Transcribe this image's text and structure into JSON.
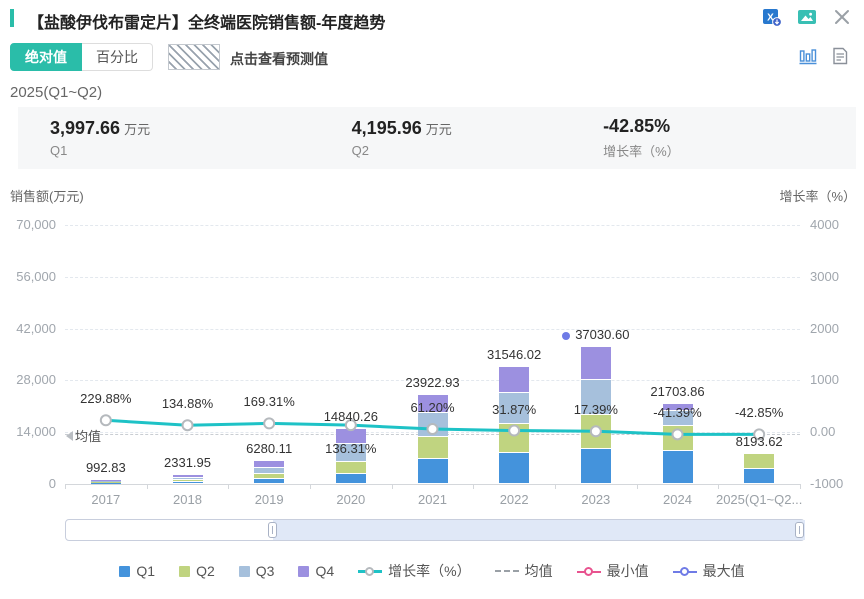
{
  "header": {
    "title": "【盐酸伊伐布雷定片】全终端医院销售额-年度趋势",
    "icons": [
      "excel-download-icon",
      "image-export-icon",
      "close-icon"
    ]
  },
  "controls": {
    "toggle": [
      {
        "label": "绝对值",
        "active": true
      },
      {
        "label": "百分比",
        "active": false
      }
    ],
    "forecast_hint": "点击查看预测值",
    "right_icons": [
      "bar-chart-icon",
      "document-icon"
    ]
  },
  "period": "2025(Q1~Q2)",
  "stats": [
    {
      "value": "3,997.66",
      "unit": "万元",
      "label": "Q1"
    },
    {
      "value": "4,195.96",
      "unit": "万元",
      "label": "Q2"
    },
    {
      "value": "-42.85%",
      "unit": "",
      "label": "增长率（%）"
    }
  ],
  "chart_data": {
    "type": "bar",
    "subtype": "stacked-bars-with-line",
    "title": "全终端医院销售额-年度趋势",
    "left_axis": {
      "label": "销售额(万元)",
      "lim": [
        0,
        70000
      ],
      "ticks": [
        {
          "value": 70000,
          "label": "70,000"
        },
        {
          "value": 56000,
          "label": "56,000"
        },
        {
          "value": 42000,
          "label": "42,000"
        },
        {
          "value": 28000,
          "label": "28,000"
        },
        {
          "value": 14000,
          "label": "14,000"
        },
        {
          "value": 0,
          "label": "0"
        }
      ]
    },
    "right_axis": {
      "label": "增长率（%）",
      "lim": [
        -1000,
        4000
      ],
      "ticks": [
        {
          "value": 4000,
          "label": "4000"
        },
        {
          "value": 3000,
          "label": "3000"
        },
        {
          "value": 2000,
          "label": "2000"
        },
        {
          "value": 1000,
          "label": "1000"
        },
        {
          "value": 0,
          "label": "0.00"
        },
        {
          "value": -1000,
          "label": "-1000"
        }
      ]
    },
    "categories": [
      "2017",
      "2018",
      "2019",
      "2020",
      "2021",
      "2022",
      "2023",
      "2024",
      "2025(Q1~Q2..."
    ],
    "totals": [
      992.83,
      2331.95,
      6280.11,
      14840.26,
      23922.93,
      31546.02,
      37030.6,
      21703.86,
      8193.62
    ],
    "total_labels": [
      "992.83",
      "2331.95",
      "6280.11",
      "14840.26",
      "23922.93",
      "31546.02",
      "37030.60",
      "21703.86",
      "8193.62"
    ],
    "growth": [
      229.88,
      134.88,
      169.31,
      136.31,
      61.2,
      31.87,
      17.39,
      -41.39,
      -42.85
    ],
    "growth_labels": [
      "229.88%",
      "134.88%",
      "169.31%",
      "136.31%",
      "61.20%",
      "31.87%",
      "17.39%",
      "-41.39%",
      "-42.85%"
    ],
    "growth_label_side": [
      "above",
      "above",
      "above",
      "below",
      "above",
      "above",
      "above",
      "above",
      "above"
    ],
    "series": [
      {
        "name": "Q1",
        "color": "#4493dc",
        "values_estimated": [
          240,
          550,
          1300,
          2700,
          6750,
          8400,
          9450,
          8900,
          3997.66
        ]
      },
      {
        "name": "Q2",
        "color": "#c0d480",
        "values_estimated": [
          250,
          580,
          1400,
          3250,
          5950,
          7850,
          9200,
          6750,
          4195.96
        ]
      },
      {
        "name": "Q3",
        "color": "#a6c0dc",
        "values_estimated": [
          250,
          600,
          1500,
          4870,
          6500,
          8400,
          9450,
          4050,
          0
        ]
      },
      {
        "name": "Q4",
        "color": "#9c90e0",
        "values_estimated": [
          252.83,
          601.95,
          2080.11,
          4020.26,
          4722.93,
          6896.02,
          8930.6,
          2003.86,
          0
        ]
      }
    ],
    "line": {
      "name": "增长率（%）",
      "color": "#1ec2c6",
      "axis": "right"
    },
    "mean": {
      "label": "均值",
      "value_estimated": 13500
    },
    "max_marker": {
      "category": "2023",
      "value": 37030.6,
      "color": "#6f7be6"
    },
    "legend_items": [
      {
        "label": "Q1",
        "type": "square",
        "color": "#4493dc"
      },
      {
        "label": "Q2",
        "type": "square",
        "color": "#c0d480"
      },
      {
        "label": "Q3",
        "type": "square",
        "color": "#a6c0dc"
      },
      {
        "label": "Q4",
        "type": "square",
        "color": "#9c90e0"
      },
      {
        "label": "增长率（%）",
        "type": "line",
        "color": "#1ec2c6"
      },
      {
        "label": "均值",
        "type": "dash",
        "color": "#9aa0a6"
      },
      {
        "label": "最小值",
        "type": "ring",
        "color": "#e8538f"
      },
      {
        "label": "最大值",
        "type": "ring",
        "color": "#6f7be6"
      }
    ],
    "grid": true,
    "legend_position": "bottom"
  },
  "colors": {
    "accent_teal": "#2abda9",
    "line_teal": "#1ec2c6",
    "max_marker": "#6f7be6",
    "min_marker": "#e8538f",
    "panel_bg": "#f6f7f8"
  }
}
